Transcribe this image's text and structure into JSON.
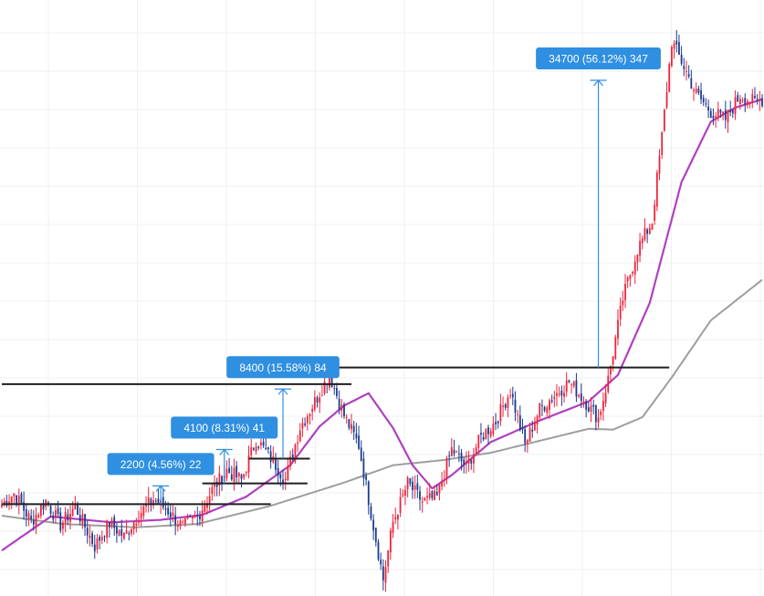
{
  "chart_data": {
    "type": "candlestick",
    "title": "",
    "xlabel": "",
    "ylabel": "",
    "grid": true,
    "colors": {
      "up_candle": "#ef233c",
      "down_candle": "#1d3b8f",
      "fast_ma": "#b040c0",
      "slow_ma": "#9e9e9e",
      "level_line": "#1f1f1f",
      "measure": "#2f8fe0",
      "label_bg": "#2f8fe0",
      "label_text": "#ffffff",
      "grid": "#eef0f3"
    },
    "ylim": [
      39000,
      111000
    ],
    "x_count": 312,
    "closes_anchor": [
      [
        0,
        50100
      ],
      [
        5,
        51400
      ],
      [
        12,
        48000
      ],
      [
        18,
        50500
      ],
      [
        24,
        47600
      ],
      [
        30,
        49800
      ],
      [
        38,
        45000
      ],
      [
        44,
        47800
      ],
      [
        50,
        46200
      ],
      [
        56,
        48900
      ],
      [
        62,
        50700
      ],
      [
        68,
        49300
      ],
      [
        74,
        47300
      ],
      [
        80,
        48600
      ],
      [
        86,
        51800
      ],
      [
        92,
        54200
      ],
      [
        98,
        53000
      ],
      [
        104,
        57900
      ],
      [
        110,
        55700
      ],
      [
        116,
        53100
      ],
      [
        122,
        59400
      ],
      [
        128,
        62500
      ],
      [
        134,
        65800
      ],
      [
        140,
        60800
      ],
      [
        146,
        57200
      ],
      [
        152,
        47500
      ],
      [
        156,
        41000
      ],
      [
        160,
        47900
      ],
      [
        166,
        52600
      ],
      [
        172,
        50400
      ],
      [
        178,
        50900
      ],
      [
        184,
        56700
      ],
      [
        190,
        54600
      ],
      [
        196,
        58200
      ],
      [
        202,
        60100
      ],
      [
        208,
        63800
      ],
      [
        214,
        57300
      ],
      [
        220,
        61600
      ],
      [
        226,
        63200
      ],
      [
        232,
        64900
      ],
      [
        238,
        62700
      ],
      [
        244,
        60500
      ],
      [
        248,
        65200
      ],
      [
        254,
        74900
      ],
      [
        260,
        80900
      ],
      [
        266,
        84300
      ],
      [
        270,
        94500
      ],
      [
        274,
        106000
      ],
      [
        278,
        103600
      ],
      [
        284,
        99700
      ],
      [
        290,
        97500
      ],
      [
        296,
        96600
      ],
      [
        302,
        99500
      ],
      [
        308,
        98600
      ],
      [
        311,
        99000
      ]
    ],
    "moving_averages": [
      {
        "color_key": "fast_ma",
        "values_anchor": [
          [
            0,
            44500
          ],
          [
            20,
            48600
          ],
          [
            45,
            47900
          ],
          [
            65,
            48200
          ],
          [
            82,
            48800
          ],
          [
            100,
            51000
          ],
          [
            118,
            54800
          ],
          [
            130,
            59500
          ],
          [
            140,
            62000
          ],
          [
            150,
            63500
          ],
          [
            160,
            59300
          ],
          [
            168,
            54800
          ],
          [
            176,
            52000
          ],
          [
            184,
            53600
          ],
          [
            200,
            57600
          ],
          [
            220,
            60200
          ],
          [
            240,
            62500
          ],
          [
            252,
            65700
          ],
          [
            265,
            74400
          ],
          [
            278,
            89000
          ],
          [
            290,
            96300
          ],
          [
            300,
            98000
          ],
          [
            311,
            99000
          ]
        ]
      },
      {
        "color_key": "slow_ma",
        "values_anchor": [
          [
            0,
            48700
          ],
          [
            25,
            47700
          ],
          [
            55,
            47300
          ],
          [
            80,
            47700
          ],
          [
            110,
            49900
          ],
          [
            140,
            52700
          ],
          [
            160,
            54800
          ],
          [
            180,
            55400
          ],
          [
            200,
            56300
          ],
          [
            240,
            59200
          ],
          [
            250,
            59100
          ],
          [
            262,
            60600
          ],
          [
            274,
            65400
          ],
          [
            290,
            72300
          ],
          [
            311,
            77200
          ]
        ]
      }
    ],
    "levels": [
      {
        "value": 50100,
        "x_from": 0,
        "x_to": 110
      },
      {
        "value": 52600,
        "x_from": 82,
        "x_to": 125
      },
      {
        "value": 55600,
        "x_from": 101,
        "x_to": 126
      },
      {
        "value": 64600,
        "x_from": 0,
        "x_to": 143
      },
      {
        "value": 66600,
        "x_from": 131,
        "x_to": 273
      }
    ],
    "measurements": [
      {
        "label": "2200 (4.56%) 22",
        "x": 65,
        "from": 50100,
        "to": 52300
      },
      {
        "label": "4100 (8.31%) 41",
        "x": 91,
        "from": 52600,
        "to": 56700
      },
      {
        "label": "8400 (15.58%) 84",
        "x": 115,
        "from": 55600,
        "to": 64000
      },
      {
        "label": "34700 (56.12%) 347",
        "x": 244,
        "from": 66600,
        "to": 101300
      }
    ]
  }
}
